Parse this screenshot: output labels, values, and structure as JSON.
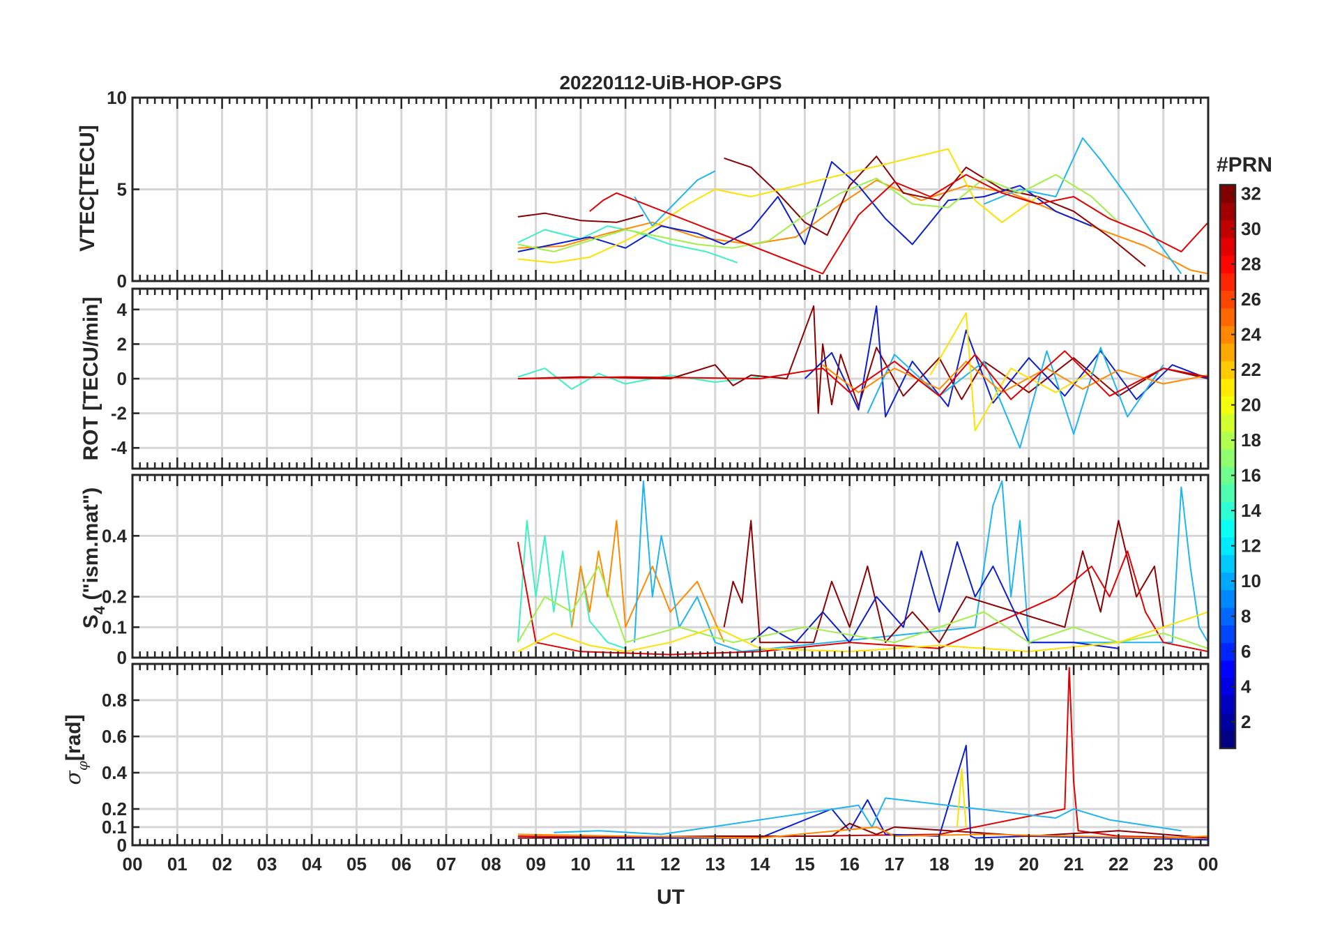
{
  "chart_data": [
    {
      "type": "line",
      "title": "20220112-UiB-HOP-GPS",
      "ylabel": "VTEC[TECU]",
      "ylim": [
        0,
        10
      ],
      "yticks": [
        0,
        5,
        10
      ],
      "xlim": [
        0,
        24
      ],
      "grid": true,
      "series": [
        {
          "color": "#3cf0c4",
          "x": [
            8.6,
            9.2,
            10.0,
            10.6,
            11.2,
            12.0,
            12.8,
            13.5
          ],
          "y": [
            2.1,
            2.8,
            2.3,
            3.0,
            2.7,
            2.0,
            1.6,
            1.0
          ]
        },
        {
          "color": "#ff8a00",
          "x": [
            8.6,
            9.6,
            10.6,
            11.6,
            12.6,
            13.8,
            14.8,
            15.8,
            16.6,
            17.6,
            18.6,
            19.6,
            20.6,
            21.6,
            22.6,
            23.6,
            24.0
          ],
          "y": [
            1.8,
            1.9,
            2.6,
            3.2,
            2.4,
            2.0,
            2.4,
            4.2,
            5.5,
            4.4,
            5.2,
            4.8,
            3.8,
            2.8,
            1.9,
            0.6,
            0.4
          ]
        },
        {
          "color": "#8b0000",
          "x": [
            8.6,
            9.2,
            10.0,
            10.8,
            11.4
          ],
          "y": [
            3.5,
            3.7,
            3.3,
            3.2,
            3.6
          ]
        },
        {
          "color": "#8b0000",
          "x": [
            13.2,
            13.8,
            14.4,
            15.0,
            15.5,
            16.0,
            16.6,
            17.2,
            18.0,
            18.6,
            19.4,
            20.2,
            21.0,
            21.8,
            22.6
          ],
          "y": [
            6.7,
            6.2,
            4.8,
            3.2,
            2.5,
            5.2,
            6.8,
            4.8,
            4.4,
            6.2,
            5.0,
            4.6,
            3.8,
            2.4,
            0.8
          ]
        },
        {
          "color": "#0a1ecc",
          "x": [
            8.6,
            9.4,
            10.2,
            11.0,
            11.8,
            12.6,
            13.2,
            13.8,
            14.4,
            15.0,
            15.6,
            16.2,
            16.8,
            17.4,
            18.2,
            19.0,
            19.8,
            20.6,
            21.4
          ],
          "y": [
            1.6,
            2.0,
            2.4,
            1.8,
            3.0,
            2.6,
            2.0,
            2.8,
            4.6,
            2.0,
            6.5,
            5.2,
            3.4,
            2.0,
            4.4,
            4.6,
            5.2,
            3.8,
            3.0
          ]
        },
        {
          "color": "#1eb4f0",
          "x": [
            11.2,
            11.6,
            12.0,
            12.6,
            13.0
          ],
          "y": [
            4.6,
            3.0,
            4.0,
            5.5,
            6.0
          ]
        },
        {
          "color": "#1eb4f0",
          "x": [
            19.0,
            19.8,
            20.6,
            21.2,
            21.6,
            22.2,
            22.8,
            23.4
          ],
          "y": [
            4.2,
            5.0,
            4.6,
            7.8,
            6.6,
            4.6,
            2.4,
            0.4
          ]
        },
        {
          "color": "#ffe000",
          "x": [
            8.6,
            9.4,
            10.2,
            11.0,
            11.8,
            12.4,
            13.0,
            13.8,
            18.2,
            18.8,
            19.4,
            20.2
          ],
          "y": [
            1.2,
            1.0,
            1.3,
            2.2,
            3.2,
            4.2,
            5.0,
            4.6,
            7.2,
            4.4,
            3.2,
            4.6
          ]
        },
        {
          "color": "#9ef046",
          "x": [
            8.6,
            9.4,
            10.2,
            11.0,
            11.8,
            12.6,
            13.4,
            14.2,
            15.0,
            15.8,
            16.6,
            17.4,
            18.2,
            19.0,
            19.8,
            20.6,
            21.4,
            22.0
          ],
          "y": [
            2.0,
            1.6,
            2.2,
            2.8,
            2.4,
            2.0,
            1.8,
            2.2,
            3.6,
            4.8,
            5.6,
            4.2,
            4.0,
            5.6,
            4.8,
            5.8,
            4.6,
            3.2
          ]
        },
        {
          "color": "#e00000",
          "x": [
            10.2,
            10.5,
            10.8,
            15.4,
            16.2,
            17.0,
            17.8,
            18.6,
            19.4,
            20.2,
            21.0,
            21.8,
            22.6,
            23.4,
            24.0
          ],
          "y": [
            3.8,
            4.4,
            4.8,
            0.4,
            3.6,
            5.4,
            4.6,
            5.8,
            4.8,
            4.2,
            4.6,
            3.4,
            2.6,
            1.6,
            3.2
          ]
        }
      ]
    },
    {
      "type": "line",
      "ylabel": "ROT [TECU/min]",
      "ylim": [
        -5.2,
        5.2
      ],
      "yticks": [
        -4,
        -2,
        0,
        2,
        4
      ],
      "xlim": [
        0,
        24
      ],
      "grid": true,
      "series": [
        {
          "color": "#3cf0c4",
          "x": [
            8.6,
            9.2,
            9.8,
            10.4,
            11.0,
            12.0,
            13.0,
            14.0
          ],
          "y": [
            0.1,
            0.6,
            -0.6,
            0.3,
            -0.3,
            0.2,
            -0.2,
            0.1
          ]
        },
        {
          "color": "#8b0000",
          "x": [
            8.6,
            10.0,
            12.0,
            13.0,
            13.4,
            13.8,
            14.6,
            15.2,
            15.3,
            15.4,
            15.6,
            15.8,
            16.2,
            16.6,
            17.2,
            18.0,
            18.5,
            19.0,
            20.0,
            21.0,
            22.0,
            23.0,
            24.0
          ],
          "y": [
            0.0,
            0.1,
            0.0,
            0.8,
            -0.4,
            0.2,
            0.0,
            4.2,
            -2.0,
            2.0,
            -1.5,
            1.4,
            -1.6,
            1.8,
            -1.0,
            1.2,
            -1.2,
            1.0,
            -0.8,
            1.2,
            -1.0,
            0.6,
            0.0
          ]
        },
        {
          "color": "#0a1ecc",
          "x": [
            15.0,
            15.6,
            16.2,
            16.6,
            16.8,
            17.4,
            18.2,
            18.6,
            19.2,
            20.0,
            20.8,
            21.6,
            22.4,
            23.2,
            24.0
          ],
          "y": [
            0.0,
            1.5,
            -1.8,
            4.2,
            -2.2,
            1.0,
            -1.6,
            2.8,
            -1.4,
            1.2,
            -1.0,
            1.6,
            -1.2,
            0.8,
            0.0
          ]
        },
        {
          "color": "#1eb4f0",
          "x": [
            16.4,
            17.0,
            18.0,
            19.0,
            19.8,
            20.4,
            21.0,
            21.6,
            22.2,
            23.0
          ],
          "y": [
            -2.0,
            1.4,
            -1.0,
            1.0,
            -4.0,
            1.6,
            -3.2,
            1.8,
            -2.2,
            0.8
          ]
        },
        {
          "color": "#ff8a00",
          "x": [
            15.4,
            16.2,
            17.0,
            18.0,
            18.6,
            19.4,
            20.4,
            21.2,
            22.0,
            23.0,
            24.0
          ],
          "y": [
            0.8,
            -0.8,
            0.6,
            -0.6,
            1.0,
            -0.8,
            0.6,
            -0.6,
            0.5,
            -0.3,
            0.2
          ]
        },
        {
          "color": "#ffe000",
          "x": [
            17.8,
            18.6,
            18.8,
            19.6,
            20.6,
            21.4
          ],
          "y": [
            0.2,
            3.8,
            -3.0,
            0.6,
            -0.8,
            0.4
          ]
        },
        {
          "color": "#e00000",
          "x": [
            8.6,
            11.0,
            14.0,
            15.4,
            16.0,
            17.0,
            18.0,
            18.8,
            19.6,
            20.8,
            21.8,
            23.0,
            24.0
          ],
          "y": [
            0.0,
            0.1,
            0.0,
            0.6,
            -0.8,
            1.0,
            -1.0,
            1.4,
            -1.2,
            1.6,
            -1.0,
            0.6,
            0.1
          ]
        }
      ]
    },
    {
      "type": "line",
      "ylabel": "S4 (\"ism.mat\")",
      "ylim": [
        0,
        0.6
      ],
      "yticks": [
        0,
        0.1,
        0.2,
        0.4
      ],
      "xlim": [
        0,
        24
      ],
      "grid": true,
      "series": [
        {
          "color": "#3cf0c4",
          "x": [
            8.6,
            8.8,
            9.0,
            9.2,
            9.4,
            9.6,
            9.8,
            10.0,
            10.2,
            10.6,
            11.0
          ],
          "y": [
            0.05,
            0.45,
            0.2,
            0.4,
            0.15,
            0.35,
            0.1,
            0.3,
            0.12,
            0.05,
            0.03
          ]
        },
        {
          "color": "#ff8a00",
          "x": [
            9.8,
            10.0,
            10.2,
            10.4,
            10.6,
            10.8,
            11.0,
            11.6,
            12.0,
            12.6,
            13.2
          ],
          "y": [
            0.1,
            0.3,
            0.15,
            0.35,
            0.2,
            0.45,
            0.1,
            0.3,
            0.15,
            0.25,
            0.05
          ]
        },
        {
          "color": "#1eb4f0",
          "x": [
            11.2,
            11.4,
            11.6,
            11.8,
            12.2,
            12.6,
            13.0,
            13.6,
            18.8,
            19.2,
            19.4,
            19.6,
            19.8,
            20.0,
            23.2,
            23.4,
            23.6,
            23.8,
            24.0
          ],
          "y": [
            0.05,
            0.58,
            0.2,
            0.4,
            0.1,
            0.2,
            0.05,
            0.02,
            0.1,
            0.5,
            0.58,
            0.2,
            0.45,
            0.05,
            0.05,
            0.56,
            0.3,
            0.1,
            0.05
          ]
        },
        {
          "color": "#8b0000",
          "x": [
            13.2,
            13.4,
            13.6,
            13.8,
            14.0,
            15.2,
            15.6,
            16.0,
            16.4,
            16.8,
            17.4,
            18.0,
            18.6,
            20.8,
            21.2,
            21.6,
            22.0,
            22.4,
            22.8,
            23.0
          ],
          "y": [
            0.1,
            0.25,
            0.18,
            0.45,
            0.05,
            0.05,
            0.25,
            0.1,
            0.3,
            0.05,
            0.15,
            0.05,
            0.2,
            0.1,
            0.35,
            0.15,
            0.45,
            0.2,
            0.3,
            0.1
          ]
        },
        {
          "color": "#0a1ecc",
          "x": [
            13.8,
            14.2,
            14.8,
            15.4,
            16.0,
            16.6,
            17.2,
            17.6,
            18.0,
            18.4,
            18.8,
            19.2,
            20.0,
            21.0,
            22.0
          ],
          "y": [
            0.05,
            0.1,
            0.05,
            0.15,
            0.05,
            0.2,
            0.1,
            0.35,
            0.15,
            0.38,
            0.2,
            0.3,
            0.05,
            0.05,
            0.03
          ]
        },
        {
          "color": "#e00000",
          "x": [
            8.6,
            9.0,
            10.0,
            12.0,
            14.0,
            16.0,
            18.0,
            20.6,
            21.0,
            21.4,
            21.8,
            22.2,
            22.6,
            23.0,
            24.0
          ],
          "y": [
            0.38,
            0.05,
            0.02,
            0.01,
            0.02,
            0.05,
            0.03,
            0.2,
            0.25,
            0.3,
            0.2,
            0.35,
            0.15,
            0.05,
            0.02
          ]
        },
        {
          "color": "#9ef046",
          "x": [
            8.6,
            9.2,
            9.8,
            10.4,
            11.0,
            12.2,
            13.4,
            15.0,
            17.0,
            19.0,
            20.0,
            21.0,
            22.0,
            23.0,
            24.0
          ],
          "y": [
            0.05,
            0.2,
            0.15,
            0.3,
            0.05,
            0.1,
            0.05,
            0.1,
            0.05,
            0.15,
            0.05,
            0.1,
            0.05,
            0.08,
            0.03
          ]
        },
        {
          "color": "#ffe000",
          "x": [
            8.6,
            9.4,
            10.2,
            11.0,
            12.0,
            13.0,
            14.0,
            16.0,
            18.0,
            20.0,
            22.0,
            24.0
          ],
          "y": [
            0.02,
            0.08,
            0.04,
            0.02,
            0.05,
            0.1,
            0.03,
            0.02,
            0.04,
            0.02,
            0.05,
            0.15
          ]
        }
      ]
    },
    {
      "type": "line",
      "ylabel": "σφ[rad]",
      "ylim": [
        0,
        1.0
      ],
      "yticks": [
        0,
        0.1,
        0.2,
        0.4,
        0.6,
        0.8
      ],
      "xlim": [
        0,
        24
      ],
      "xlabel": "UT",
      "grid": true,
      "series": [
        {
          "color": "#e00000",
          "x": [
            8.6,
            12.0,
            15.0,
            18.0,
            20.8,
            20.9,
            21.0,
            21.1,
            22.0,
            24.0
          ],
          "y": [
            0.05,
            0.04,
            0.05,
            0.06,
            0.2,
            0.98,
            0.35,
            0.08,
            0.05,
            0.04
          ]
        },
        {
          "color": "#0a1ecc",
          "x": [
            8.6,
            14.0,
            15.6,
            16.0,
            16.4,
            16.8,
            18.0,
            18.6,
            18.7,
            18.8,
            20.0,
            24.0
          ],
          "y": [
            0.04,
            0.04,
            0.2,
            0.08,
            0.25,
            0.06,
            0.05,
            0.55,
            0.05,
            0.04,
            0.05,
            0.03
          ]
        },
        {
          "color": "#1eb4f0",
          "x": [
            9.4,
            10.4,
            11.8,
            16.2,
            16.5,
            16.8,
            20.6,
            21.0,
            21.8,
            23.4
          ],
          "y": [
            0.07,
            0.08,
            0.06,
            0.22,
            0.1,
            0.26,
            0.15,
            0.2,
            0.14,
            0.08
          ]
        },
        {
          "color": "#ffe000",
          "x": [
            18.4,
            18.5,
            18.6
          ],
          "y": [
            0.1,
            0.42,
            0.1
          ]
        },
        {
          "color": "#8b0000",
          "x": [
            8.6,
            13.0,
            15.6,
            16.0,
            16.6,
            17.0,
            20.0,
            22.0,
            24.0
          ],
          "y": [
            0.04,
            0.05,
            0.05,
            0.12,
            0.06,
            0.1,
            0.05,
            0.08,
            0.04
          ]
        },
        {
          "color": "#ff8a00",
          "x": [
            8.6,
            11.0,
            14.0,
            16.6,
            17.0,
            19.0,
            21.0,
            23.0,
            24.0
          ],
          "y": [
            0.06,
            0.05,
            0.04,
            0.1,
            0.05,
            0.06,
            0.05,
            0.04,
            0.05
          ]
        }
      ]
    }
  ],
  "title": "20220112-UiB-HOP-GPS",
  "ylabels": [
    "VTEC[TECU]",
    "ROT [TECU/min]",
    "S",
    "4",
    " (\"ism.mat\")",
    "σ",
    "φ",
    "[rad]"
  ],
  "xticklabels": [
    "00",
    "01",
    "02",
    "03",
    "04",
    "05",
    "06",
    "07",
    "08",
    "09",
    "10",
    "11",
    "12",
    "13",
    "14",
    "15",
    "16",
    "17",
    "18",
    "19",
    "20",
    "21",
    "22",
    "23",
    "00"
  ],
  "xlabel": "UT",
  "colorbar": {
    "label": "#PRN",
    "ticks": [
      2,
      4,
      6,
      8,
      10,
      12,
      14,
      16,
      18,
      20,
      22,
      24,
      26,
      28,
      30,
      32
    ],
    "range": [
      1,
      32
    ],
    "colormap": "jet"
  }
}
